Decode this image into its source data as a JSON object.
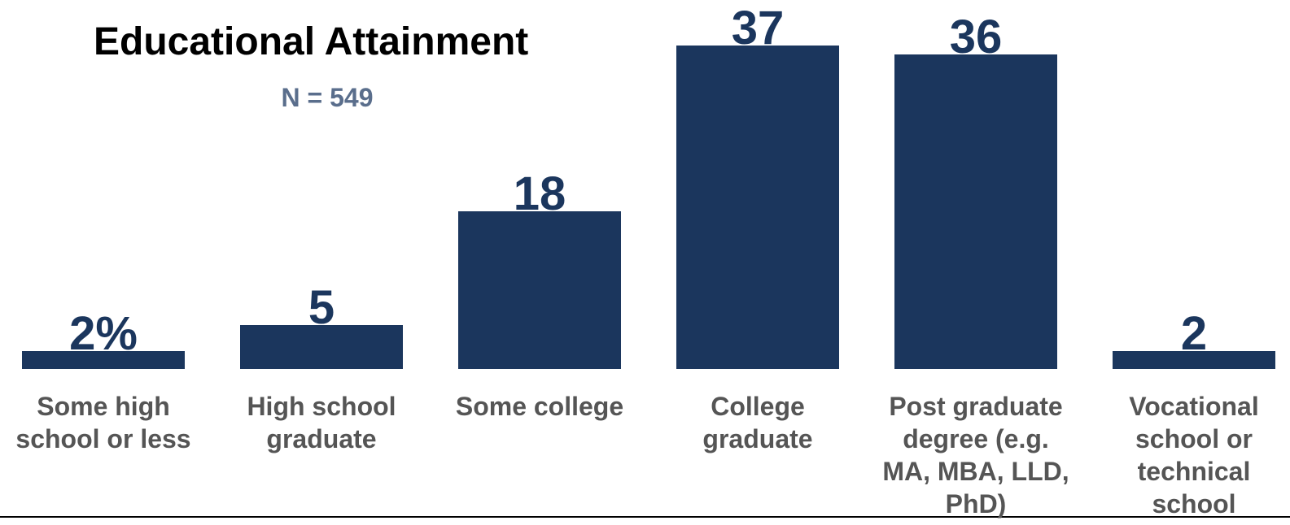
{
  "chart_data": {
    "type": "bar",
    "title": "Educational Attainment",
    "subtitle": "N = 549",
    "categories": [
      "Some high school or less",
      "High school graduate",
      "Some college",
      "College graduate",
      "Post graduate degree (e.g. MA, MBA, LLD, PhD)",
      "Vocational school or technical school"
    ],
    "values": [
      2,
      5,
      18,
      37,
      36,
      2
    ],
    "value_labels": [
      "2%",
      "5",
      "18",
      "37",
      "36",
      "2"
    ],
    "color": "#1b365d"
  }
}
